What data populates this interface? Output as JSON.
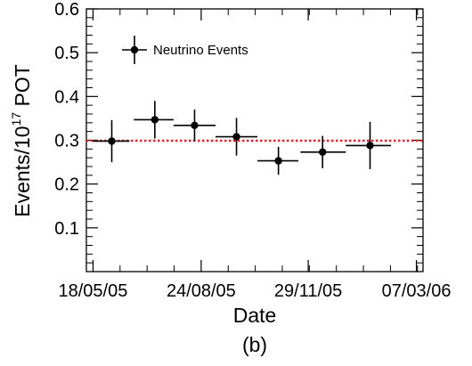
{
  "chart_data": {
    "type": "scatter",
    "xlabel": "Date",
    "ylabel_main": "Events/10",
    "ylabel_exp": "17",
    "ylabel_suffix": " POT",
    "panel_label": "(b)",
    "legend_label": "Neutrino Events",
    "legend_position": "top-left",
    "grid": false,
    "x_axis": {
      "type": "date",
      "range": [
        "2005-05-12",
        "2006-03-13"
      ],
      "ticks": [
        {
          "date": "2005-05-18",
          "label": "18/05/05"
        },
        {
          "date": "2005-08-24",
          "label": "24/08/05"
        },
        {
          "date": "2005-11-29",
          "label": "29/11/05"
        },
        {
          "date": "2006-03-07",
          "label": "07/03/06"
        }
      ]
    },
    "y_axis": {
      "range": [
        0,
        0.6
      ],
      "ticks": [
        {
          "value": 0.1,
          "label": "0.1"
        },
        {
          "value": 0.2,
          "label": "0.2"
        },
        {
          "value": 0.3,
          "label": "0.3"
        },
        {
          "value": 0.4,
          "label": "0.4"
        },
        {
          "value": 0.5,
          "label": "0.5"
        },
        {
          "value": 0.6,
          "label": "0.6"
        }
      ]
    },
    "series": [
      {
        "name": "Neutrino Events",
        "points": [
          {
            "x": "2005-06-04",
            "x_low": "2005-05-18",
            "x_high": "2005-06-20",
            "y": 0.298,
            "y_err": 0.048
          },
          {
            "x": "2005-07-13",
            "x_low": "2005-06-24",
            "x_high": "2005-07-30",
            "y": 0.347,
            "y_err": 0.043
          },
          {
            "x": "2005-08-18",
            "x_low": "2005-07-30",
            "x_high": "2005-09-06",
            "y": 0.334,
            "y_err": 0.036
          },
          {
            "x": "2005-09-25",
            "x_low": "2005-09-06",
            "x_high": "2005-10-14",
            "y": 0.308,
            "y_err": 0.043
          },
          {
            "x": "2005-11-02",
            "x_low": "2005-10-14",
            "x_high": "2005-11-20",
            "y": 0.253,
            "y_err": 0.032
          },
          {
            "x": "2005-12-12",
            "x_low": "2005-11-22",
            "x_high": "2006-01-02",
            "y": 0.273,
            "y_err": 0.037
          },
          {
            "x": "2006-01-24",
            "x_low": "2006-01-02",
            "x_high": "2006-02-12",
            "y": 0.288,
            "y_err": 0.054
          }
        ]
      }
    ],
    "reference_line": {
      "y": 0.299,
      "color": "#e8202a",
      "style": "dotted"
    }
  }
}
